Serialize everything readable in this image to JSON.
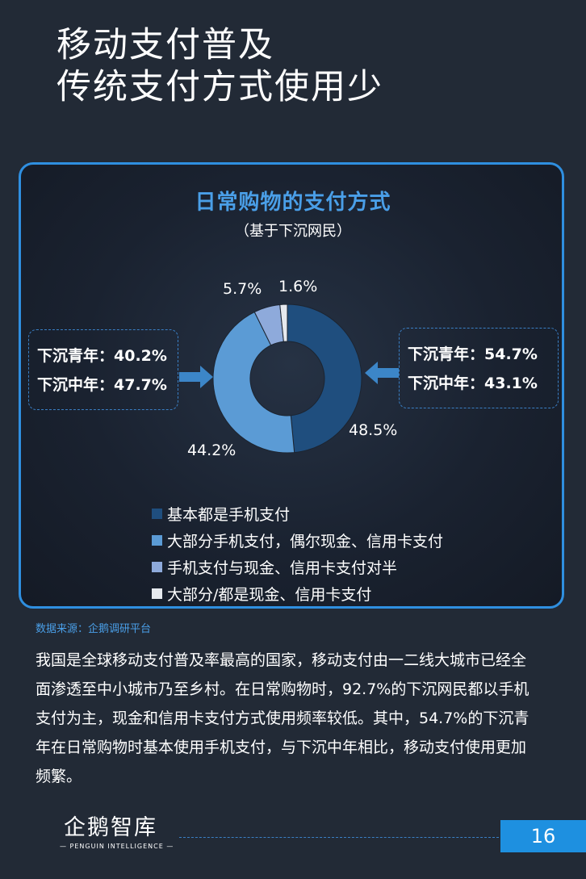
{
  "title": {
    "line1": "移动支付普及",
    "line2": "传统支付方式使用少"
  },
  "chart_data": {
    "type": "pie",
    "title": "日常购物的支付方式",
    "subtitle": "（基于下沉网民）",
    "categories": [
      "基本都是手机支付",
      "大部分手机支付，偶尔现金、信用卡支付",
      "手机支付与现金、信用卡支付对半",
      "大部分/都是现金、信用卡支付"
    ],
    "values": [
      48.5,
      44.2,
      5.7,
      1.6
    ],
    "value_labels": [
      "48.5%",
      "44.2%",
      "5.7%",
      "1.6%"
    ],
    "colors": [
      "#1f4e7e",
      "#5b9bd5",
      "#8eaadb",
      "#e6e9ee"
    ],
    "legend_position": "bottom",
    "donut": true
  },
  "left_box": {
    "line1": "下沉青年：40.2%",
    "line2": "下沉中年：47.7%"
  },
  "right_box": {
    "line1": "下沉青年：54.7%",
    "line2": "下沉中年：43.1%"
  },
  "source": "数据来源：企鹅调研平台",
  "body_text": "我国是全球移动支付普及率最高的国家，移动支付由一二线大城市已经全面渗透至中小城市乃至乡村。在日常购物时，92.7%的下沉网民都以手机支付为主，现金和信用卡支付方式使用频率较低。其中，54.7%的下沉青年在日常购物时基本使用手机支付，与下沉中年相比，移动支付使用更加频繁。",
  "logo": {
    "main": "企鹅智库",
    "sub": "— PENGUIN INTELLIGENCE —"
  },
  "page_number": "16",
  "colors": {
    "background": "#222a36",
    "accent": "#1e90e0",
    "title_blue": "#4a9fe8"
  }
}
